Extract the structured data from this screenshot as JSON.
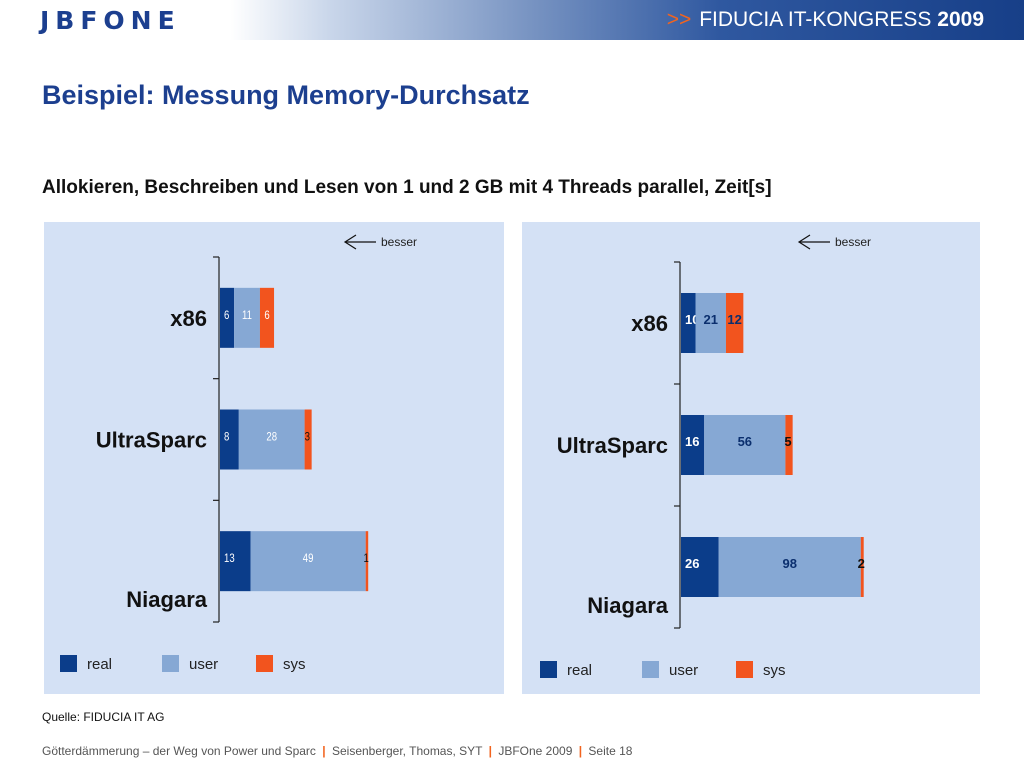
{
  "header": {
    "logo": "JBFONE",
    "event_arrows": ">>",
    "event_name": "FIDUCIA IT-KONGRESS",
    "event_year": "2009"
  },
  "slide": {
    "title": "Beispiel: Messung Memory-Durchsatz",
    "subtitle": "Allokieren, Beschreiben und Lesen von 1 und 2 GB mit 4 Threads parallel, Zeit[s]"
  },
  "colors": {
    "real": "#0b3d8a",
    "user": "#86a8d4",
    "sys": "#f2541e",
    "panel_bg": "#d4e1f5",
    "brand": "#1c3f8f"
  },
  "chart_data": [
    {
      "type": "bar",
      "orientation": "horizontal",
      "stacked": true,
      "title": "",
      "annotation": "besser",
      "categories": [
        "x86",
        "UltraSparc",
        "Niagara"
      ],
      "series": [
        {
          "name": "real",
          "values": [
            6,
            8,
            13
          ]
        },
        {
          "name": "user",
          "values": [
            11,
            28,
            49
          ]
        },
        {
          "name": "sys",
          "values": [
            6,
            3,
            1
          ]
        }
      ],
      "xlim": [
        0,
        70
      ],
      "legend_position": "bottom"
    },
    {
      "type": "bar",
      "orientation": "horizontal",
      "stacked": true,
      "title": "",
      "annotation": "besser",
      "categories": [
        "x86",
        "UltraSparc",
        "Niagara"
      ],
      "series": [
        {
          "name": "real",
          "values": [
            10,
            16,
            26
          ]
        },
        {
          "name": "user",
          "values": [
            21,
            56,
            98
          ]
        },
        {
          "name": "sys",
          "values": [
            12,
            5,
            2
          ]
        }
      ],
      "xlim": [
        0,
        135
      ],
      "legend_position": "bottom"
    }
  ],
  "source": "Quelle: FIDUCIA IT AG",
  "footer": {
    "part1": "Götterdämmerung – der Weg von Power und Sparc",
    "sep1": "|",
    "part2": "Seisenberger, Thomas, SYT",
    "sep2": "|",
    "part3": "JBFOne 2009",
    "sep3": "|",
    "part4": "Seite 18"
  }
}
